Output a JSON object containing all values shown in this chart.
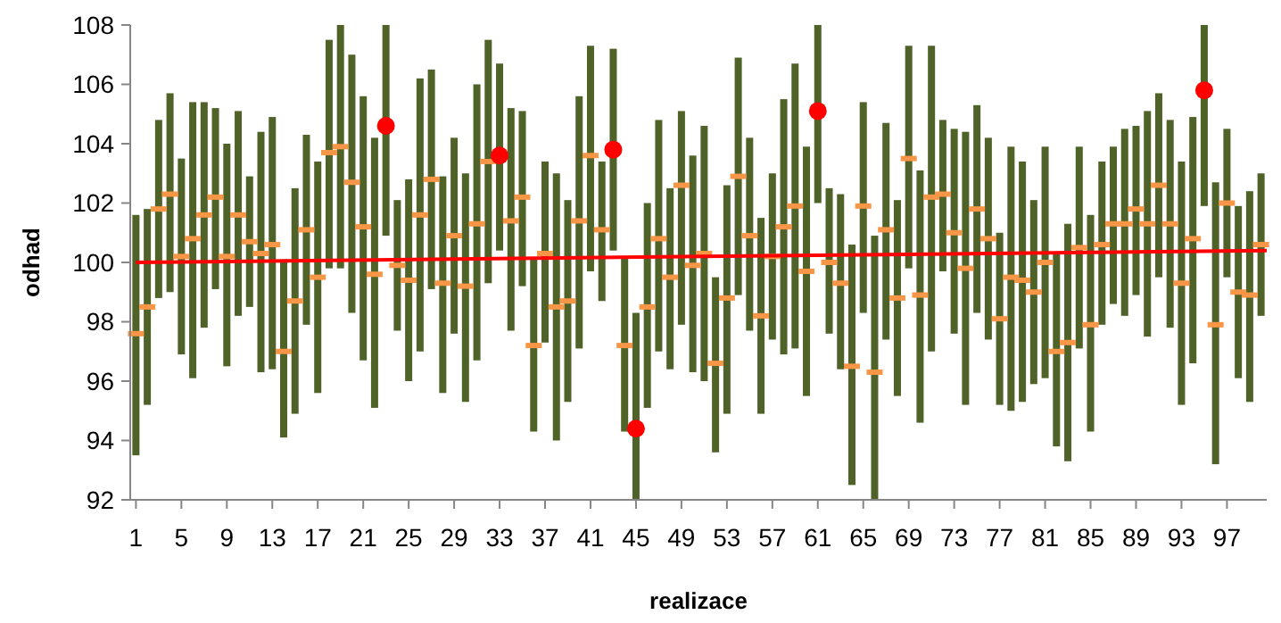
{
  "chart_data": {
    "type": "bar",
    "xlabel": "realizace",
    "ylabel": "odhad",
    "x": [
      1,
      2,
      3,
      4,
      5,
      6,
      7,
      8,
      9,
      10,
      11,
      12,
      13,
      14,
      15,
      16,
      17,
      18,
      19,
      20,
      21,
      22,
      23,
      24,
      25,
      26,
      27,
      28,
      29,
      30,
      31,
      32,
      33,
      34,
      35,
      36,
      37,
      38,
      39,
      40,
      41,
      42,
      43,
      44,
      45,
      46,
      47,
      48,
      49,
      50,
      51,
      52,
      53,
      54,
      55,
      56,
      57,
      58,
      59,
      60,
      61,
      62,
      63,
      64,
      65,
      66,
      67,
      68,
      69,
      70,
      71,
      72,
      73,
      74,
      75,
      76,
      77,
      78,
      79,
      80,
      81,
      82,
      83,
      84,
      85,
      86,
      87,
      88,
      89,
      90,
      91,
      92,
      93,
      94,
      95,
      96,
      97,
      98,
      99,
      100
    ],
    "xlim": [
      0.5,
      100.5
    ],
    "xticks": [
      1,
      5,
      9,
      13,
      17,
      21,
      25,
      29,
      33,
      37,
      41,
      45,
      49,
      53,
      57,
      61,
      65,
      69,
      73,
      77,
      81,
      85,
      89,
      93,
      97
    ],
    "ylim": [
      92,
      108
    ],
    "yticks": [
      92,
      94,
      96,
      98,
      100,
      102,
      104,
      106,
      108
    ],
    "grid": false,
    "series": [
      {
        "color": "#4f6228",
        "base": [
          93.5,
          95.2,
          98.8,
          99.0,
          96.9,
          96.1,
          97.8,
          99.1,
          96.5,
          98.2,
          98.5,
          96.3,
          96.4,
          94.1,
          94.9,
          97.9,
          95.6,
          99.8,
          99.8,
          98.3,
          96.7,
          95.1,
          100.9,
          97.7,
          96.0,
          97.0,
          99.1,
          95.6,
          97.6,
          95.3,
          96.7,
          99.3,
          100.4,
          97.7,
          99.2,
          94.3,
          97.3,
          94.0,
          95.3,
          97.1,
          99.7,
          98.7,
          100.4,
          94.3,
          92.0,
          95.1,
          97.0,
          96.4,
          97.9,
          96.3,
          96.0,
          93.6,
          94.9,
          98.9,
          97.7,
          94.9,
          97.4,
          96.9,
          97.1,
          95.5,
          102.0,
          97.6,
          96.4,
          92.5,
          98.3,
          92.0,
          97.4,
          95.5,
          99.8,
          94.6,
          97.0,
          99.7,
          97.6,
          95.2,
          98.3,
          97.4,
          95.2,
          95.0,
          95.3,
          95.9,
          96.1,
          93.8,
          93.3,
          97.1,
          94.3,
          97.9,
          98.6,
          98.2,
          98.9,
          97.5,
          99.5,
          97.8,
          95.2,
          96.6,
          101.9,
          93.2,
          99.5,
          96.1,
          95.3,
          98.2
        ],
        "values": [
          8.1,
          6.6,
          6.0,
          6.7,
          6.6,
          9.3,
          7.6,
          6.1,
          7.5,
          6.9,
          4.4,
          8.1,
          8.5,
          6.0,
          7.6,
          6.4,
          7.8,
          7.7,
          8.2,
          8.7,
          8.9,
          9.1,
          7.1,
          4.4,
          6.8,
          9.2,
          7.4,
          7.3,
          6.6,
          7.7,
          9.3,
          8.2,
          6.3,
          7.5,
          5.9,
          5.8,
          6.1,
          9.0,
          6.8,
          8.5,
          7.6,
          4.7,
          6.8,
          5.9,
          6.3,
          6.9,
          7.8,
          6.1,
          7.2,
          7.3,
          8.6,
          5.9,
          7.7,
          8.0,
          6.5,
          6.6,
          5.6,
          8.6,
          9.6,
          8.4,
          6.0,
          4.9,
          5.9,
          8.1,
          7.1,
          8.9,
          7.3,
          6.6,
          7.5,
          8.5,
          10.3,
          5.1,
          6.9,
          9.2,
          7.0,
          6.8,
          5.8,
          8.9,
          8.1,
          6.2,
          7.8,
          6.5,
          8.0,
          6.8,
          7.3,
          5.5,
          5.3,
          6.3,
          5.7,
          7.6,
          6.2,
          7.0,
          8.2,
          8.3,
          6.1,
          9.5,
          5.0,
          5.8,
          7.1,
          4.8
        ]
      },
      {
        "type": "scatter",
        "color": "#f79646",
        "marker": "square",
        "values": [
          97.6,
          98.5,
          101.8,
          102.3,
          100.2,
          100.8,
          101.6,
          102.2,
          100.2,
          101.6,
          100.7,
          100.3,
          100.6,
          97.0,
          98.7,
          101.1,
          99.5,
          103.7,
          103.9,
          102.7,
          101.2,
          99.6,
          null,
          99.9,
          99.4,
          101.6,
          102.8,
          99.3,
          100.9,
          99.2,
          101.3,
          103.4,
          null,
          101.4,
          102.2,
          97.2,
          100.3,
          98.5,
          98.7,
          101.4,
          103.6,
          101.1,
          null,
          97.2,
          null,
          98.5,
          100.8,
          99.5,
          102.6,
          99.9,
          100.3,
          96.6,
          98.8,
          102.9,
          100.9,
          98.2,
          100.2,
          101.2,
          101.9,
          99.7,
          null,
          100.0,
          99.3,
          96.5,
          101.9,
          96.3,
          101.1,
          98.8,
          103.5,
          98.9,
          102.2,
          102.3,
          101.0,
          99.8,
          101.8,
          100.8,
          98.1,
          99.5,
          99.4,
          99.0,
          100.0,
          97.0,
          97.3,
          100.5,
          97.9,
          100.6,
          101.3,
          101.3,
          101.8,
          101.3,
          102.6,
          101.3,
          99.3,
          100.8,
          null,
          97.9,
          102.0,
          99.0,
          98.9,
          100.6
        ]
      },
      {
        "type": "scatter",
        "color": "#ff0000",
        "marker": "circle",
        "values": [
          null,
          null,
          null,
          null,
          null,
          null,
          null,
          null,
          null,
          null,
          null,
          null,
          null,
          null,
          null,
          null,
          null,
          null,
          null,
          null,
          null,
          null,
          104.6,
          null,
          null,
          null,
          null,
          null,
          null,
          null,
          null,
          null,
          103.6,
          null,
          null,
          null,
          null,
          null,
          null,
          null,
          null,
          null,
          103.8,
          null,
          94.4,
          null,
          null,
          null,
          null,
          null,
          null,
          null,
          null,
          null,
          null,
          null,
          null,
          null,
          null,
          null,
          105.1,
          null,
          null,
          null,
          null,
          null,
          null,
          null,
          null,
          null,
          null,
          null,
          null,
          null,
          null,
          null,
          null,
          null,
          null,
          null,
          null,
          null,
          null,
          null,
          null,
          null,
          null,
          null,
          null,
          null,
          null,
          null,
          null,
          null,
          105.8,
          null,
          null,
          null,
          null,
          null
        ]
      },
      {
        "type": "line",
        "color": "#ff0000",
        "line_style": "solid",
        "x": [
          1,
          100.5
        ],
        "values": [
          100.0,
          100.4
        ]
      }
    ]
  }
}
